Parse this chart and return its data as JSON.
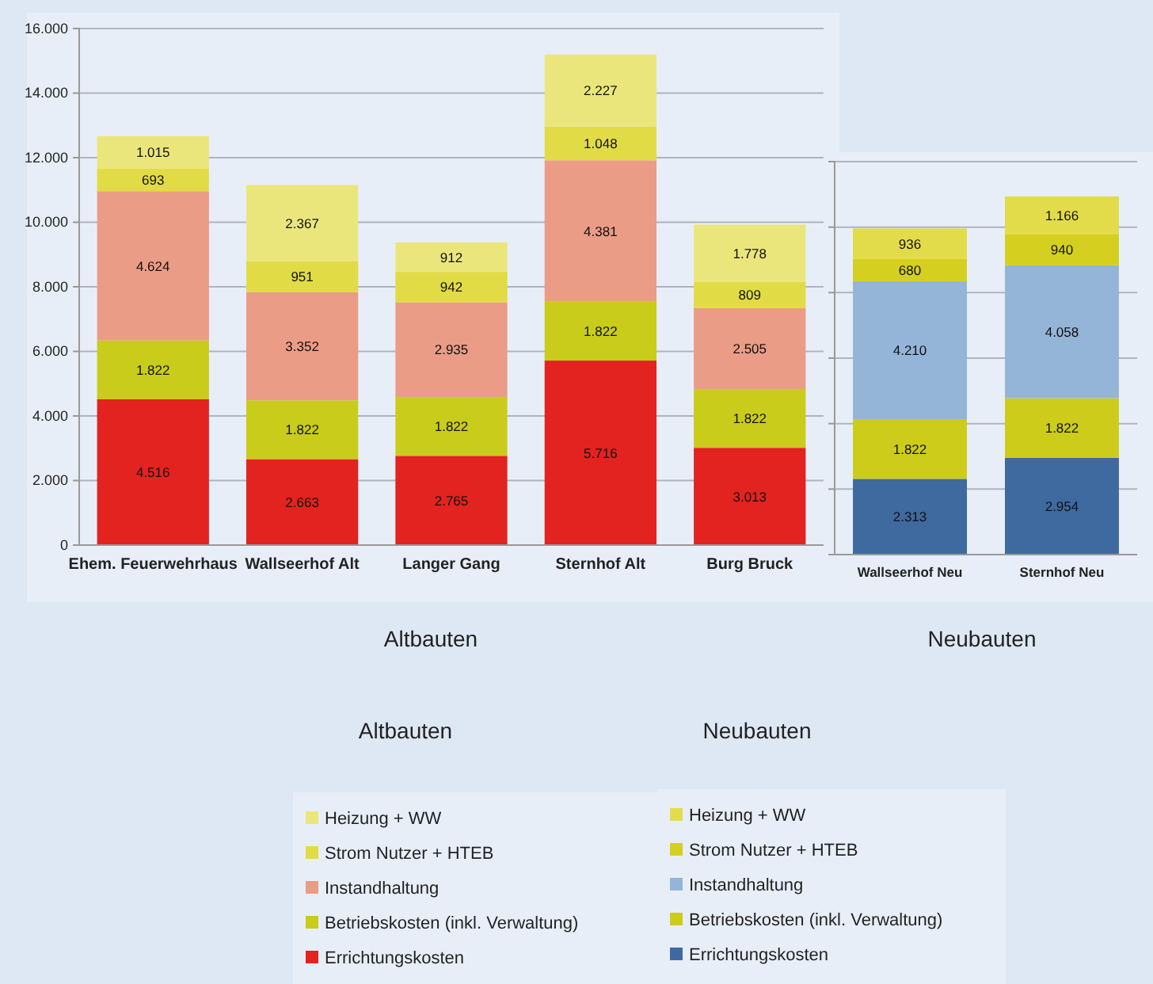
{
  "chart_data": [
    {
      "type": "bar",
      "stacked": true,
      "xlabel": "Altbauten",
      "legend_title": "Altbauten",
      "legend": "bottom",
      "grid": "y",
      "tick_labels": "xy",
      "categories": [
        "Ehem. Feuerwehrhaus",
        "Wallseerhof Alt",
        "Langer Gang",
        "Sternhof Alt",
        "Burg Bruck"
      ],
      "ylim": [
        0,
        16000
      ],
      "yticks": [
        {
          "value": 0,
          "label": "0"
        },
        {
          "value": 2000,
          "label": "2.000"
        },
        {
          "value": 4000,
          "label": "4.000"
        },
        {
          "value": 6000,
          "label": "6.000"
        },
        {
          "value": 8000,
          "label": "8.000"
        },
        {
          "value": 10000,
          "label": "10.000"
        },
        {
          "value": 12000,
          "label": "12.000"
        },
        {
          "value": 14000,
          "label": "14.000"
        },
        {
          "value": 16000,
          "label": "16.000"
        }
      ],
      "series": [
        {
          "name": "Errichtungskosten",
          "color": "#e2231f",
          "values": [
            4516,
            2663,
            2765,
            5716,
            3013
          ],
          "value_labels": [
            "4.516",
            "2.663",
            "2.765",
            "5.716",
            "3.013"
          ]
        },
        {
          "name": "Betriebskosten (inkl. Verwaltung)",
          "color": "#c9cc1a",
          "values": [
            1822,
            1822,
            1822,
            1822,
            1822
          ],
          "value_labels": [
            "1.822",
            "1.822",
            "1.822",
            "1.822",
            "1.822"
          ]
        },
        {
          "name": "Instandhaltung",
          "color": "#eb9c86",
          "values": [
            4624,
            3352,
            2935,
            4381,
            2505
          ],
          "value_labels": [
            "4.624",
            "3.352",
            "2.935",
            "4.381",
            "2.505"
          ]
        },
        {
          "name": "Strom Nutzer + HTEB",
          "color": "#e1dc45",
          "values": [
            693,
            951,
            942,
            1048,
            809
          ],
          "value_labels": [
            "693",
            "951",
            "942",
            "1.048",
            "809"
          ]
        },
        {
          "name": "Heizung + WW",
          "color": "#ebe67c",
          "values": [
            1015,
            2367,
            912,
            2227,
            1778
          ],
          "value_labels": [
            "1.015",
            "2.367",
            "912",
            "2.227",
            "1.778"
          ]
        }
      ]
    },
    {
      "type": "bar",
      "stacked": true,
      "xlabel": "Neubauten",
      "legend_title": "Neubauten",
      "legend": "bottom",
      "grid": "y",
      "tick_labels": "x",
      "categories": [
        "Wallseerhof Neu",
        "Sternhof Neu"
      ],
      "ylim": [
        0,
        12000
      ],
      "yticks": [
        {
          "value": 0,
          "label": null
        },
        {
          "value": 2000,
          "label": null
        },
        {
          "value": 4000,
          "label": null
        },
        {
          "value": 6000,
          "label": null
        },
        {
          "value": 8000,
          "label": null
        },
        {
          "value": 10000,
          "label": null
        },
        {
          "value": 12000,
          "label": null
        }
      ],
      "series": [
        {
          "name": "Errichtungskosten",
          "color": "#3f6aa0",
          "values": [
            2313,
            2954
          ],
          "value_labels": [
            "2.313",
            "2.954"
          ]
        },
        {
          "name": "Betriebskosten (inkl. Verwaltung)",
          "color": "#cdcc1a",
          "values": [
            1822,
            1822
          ],
          "value_labels": [
            "1.822",
            "1.822"
          ]
        },
        {
          "name": "Instandhaltung",
          "color": "#94b5d8",
          "values": [
            4210,
            4058
          ],
          "value_labels": [
            "4.210",
            "4.058"
          ]
        },
        {
          "name": "Strom Nutzer + HTEB",
          "color": "#d5d01f",
          "values": [
            680,
            940
          ],
          "value_labels": [
            "680",
            "940"
          ]
        },
        {
          "name": "Heizung + WW",
          "color": "#e3dc4a",
          "values": [
            936,
            1166
          ],
          "value_labels": [
            "936",
            "1.166"
          ]
        }
      ]
    }
  ]
}
